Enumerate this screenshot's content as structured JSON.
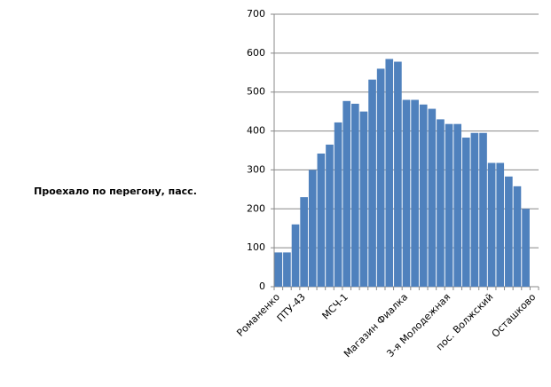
{
  "chart_data": {
    "type": "bar",
    "y_label": "Проехало по перегону, пасс.",
    "categories": [
      "Романенко",
      null,
      null,
      "ПТУ-43",
      null,
      null,
      null,
      null,
      "МСЧ-1",
      null,
      null,
      null,
      null,
      null,
      null,
      "Магазин Фиалка",
      null,
      null,
      null,
      null,
      "3-я Молодежная",
      null,
      null,
      null,
      null,
      "пос. Волжский",
      null,
      null,
      null,
      null,
      "Осташково"
    ],
    "values": [
      88,
      88,
      160,
      230,
      300,
      342,
      365,
      422,
      477,
      470,
      450,
      532,
      560,
      585,
      578,
      480,
      480,
      468,
      457,
      430,
      418,
      418,
      383,
      395,
      395,
      318,
      318,
      283,
      258,
      200,
      0
    ],
    "color": "#4f81bd",
    "ylim": [
      0,
      700
    ],
    "yticks": [
      0,
      100,
      200,
      300,
      400,
      500,
      600,
      700
    ],
    "grid": true
  }
}
